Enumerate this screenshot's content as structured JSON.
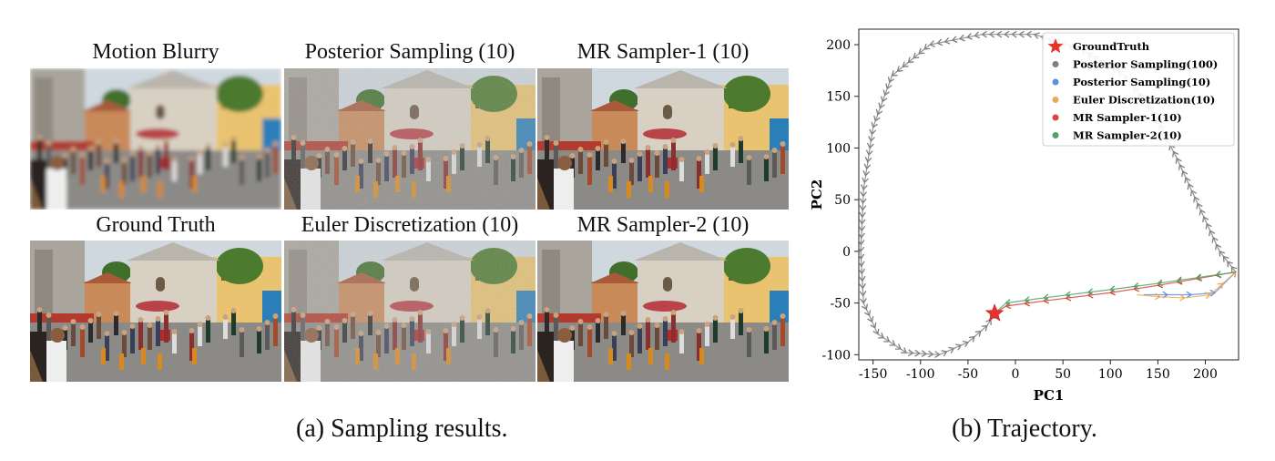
{
  "panels": [
    {
      "title": "Motion Blurry",
      "variant": "blur"
    },
    {
      "title": "Posterior Sampling (10)",
      "variant": "noisy"
    },
    {
      "title": "MR Sampler-1 (10)",
      "variant": "sharp"
    },
    {
      "title": "Ground Truth",
      "variant": "sharp"
    },
    {
      "title": "Euler Discretization (10)",
      "variant": "noisy"
    },
    {
      "title": "MR Sampler-2 (10)",
      "variant": "sharp"
    }
  ],
  "captions": {
    "left": "(a) Sampling results.",
    "right": "(b) Trajectory."
  },
  "chart_data": {
    "type": "scatter",
    "title": "",
    "xlabel": "PC1",
    "ylabel": "PC2",
    "xlim": [
      -165,
      235
    ],
    "ylim": [
      -105,
      215
    ],
    "xticks": [
      -150,
      -100,
      -50,
      0,
      50,
      100,
      150,
      200
    ],
    "yticks": [
      -100,
      -50,
      0,
      50,
      100,
      150,
      200
    ],
    "grid": false,
    "legend_position": "top-right",
    "series": [
      {
        "name": "GroundTruth",
        "color": "#e8322c",
        "marker": "star",
        "points": [
          [
            -22,
            -60
          ]
        ]
      },
      {
        "name": "Posterior Sampling(100)",
        "color": "#7f7f7f",
        "marker": "arrow-path",
        "points": [
          [
            232,
            -20
          ],
          [
            215,
            0
          ],
          [
            195,
            40
          ],
          [
            170,
            90
          ],
          [
            145,
            135
          ],
          [
            115,
            170
          ],
          [
            70,
            195
          ],
          [
            20,
            210
          ],
          [
            -35,
            210
          ],
          [
            -90,
            200
          ],
          [
            -130,
            170
          ],
          [
            -150,
            120
          ],
          [
            -160,
            60
          ],
          [
            -163,
            0
          ],
          [
            -160,
            -50
          ],
          [
            -145,
            -80
          ],
          [
            -115,
            -98
          ],
          [
            -80,
            -100
          ],
          [
            -50,
            -88
          ],
          [
            -30,
            -72
          ],
          [
            -22,
            -60
          ]
        ]
      },
      {
        "name": "Posterior Sampling(10)",
        "color": "#5b8fd9",
        "marker": "arrow-path",
        "points": [
          [
            135,
            -42
          ],
          [
            160,
            -42
          ],
          [
            185,
            -42
          ],
          [
            210,
            -40
          ],
          [
            232,
            -20
          ]
        ]
      },
      {
        "name": "Euler Discretization(10)",
        "color": "#e8a95b",
        "marker": "arrow-path",
        "points": [
          [
            128,
            -42
          ],
          [
            152,
            -44
          ],
          [
            178,
            -45
          ],
          [
            205,
            -42
          ],
          [
            232,
            -20
          ]
        ]
      },
      {
        "name": "MR Sampler-1(10)",
        "color": "#d9473d",
        "marker": "arrow-path",
        "points": [
          [
            232,
            -20
          ],
          [
            150,
            -33
          ],
          [
            100,
            -40
          ],
          [
            30,
            -48
          ],
          [
            -10,
            -53
          ],
          [
            -22,
            -60
          ]
        ]
      },
      {
        "name": "MR Sampler-2(10)",
        "color": "#4fa36a",
        "marker": "arrow-path",
        "points": [
          [
            232,
            -20
          ],
          [
            150,
            -31
          ],
          [
            100,
            -37
          ],
          [
            30,
            -45
          ],
          [
            -10,
            -50
          ],
          [
            -22,
            -60
          ]
        ]
      }
    ]
  }
}
